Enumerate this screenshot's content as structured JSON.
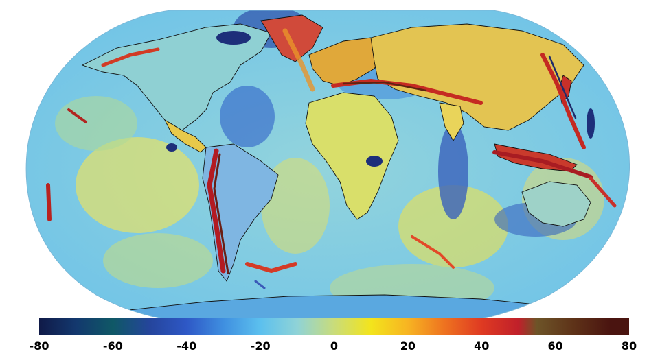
{
  "colorbar": {
    "min": -80,
    "max": 80,
    "ticks": [
      "-80",
      "-60",
      "-40",
      "-20",
      "0",
      "20",
      "40",
      "60",
      "80"
    ],
    "tick_values": [
      -80,
      -60,
      -40,
      -20,
      0,
      20,
      40,
      60,
      80
    ],
    "stops": [
      {
        "value": -80,
        "color": "#101a48"
      },
      {
        "value": -70,
        "color": "#13386e"
      },
      {
        "value": -60,
        "color": "#0f5866"
      },
      {
        "value": -50,
        "color": "#25459c"
      },
      {
        "value": -40,
        "color": "#2e58c6"
      },
      {
        "value": -30,
        "color": "#3f8fe0"
      },
      {
        "value": -20,
        "color": "#5cc0ee"
      },
      {
        "value": -10,
        "color": "#8fd3d7"
      },
      {
        "value": 0,
        "color": "#c9dc7a"
      },
      {
        "value": 10,
        "color": "#f3e41c"
      },
      {
        "value": 20,
        "color": "#f7b422"
      },
      {
        "value": 30,
        "color": "#ee7220"
      },
      {
        "value": 40,
        "color": "#df3a22"
      },
      {
        "value": 50,
        "color": "#c0202a"
      },
      {
        "value": 55,
        "color": "#6d5428"
      },
      {
        "value": 65,
        "color": "#5e3218"
      },
      {
        "value": 75,
        "color": "#4a1410"
      }
    ]
  },
  "map": {
    "projection": "Robinson",
    "ocean_base_color": "#7ecbe6",
    "coastline_color": "#111111"
  }
}
